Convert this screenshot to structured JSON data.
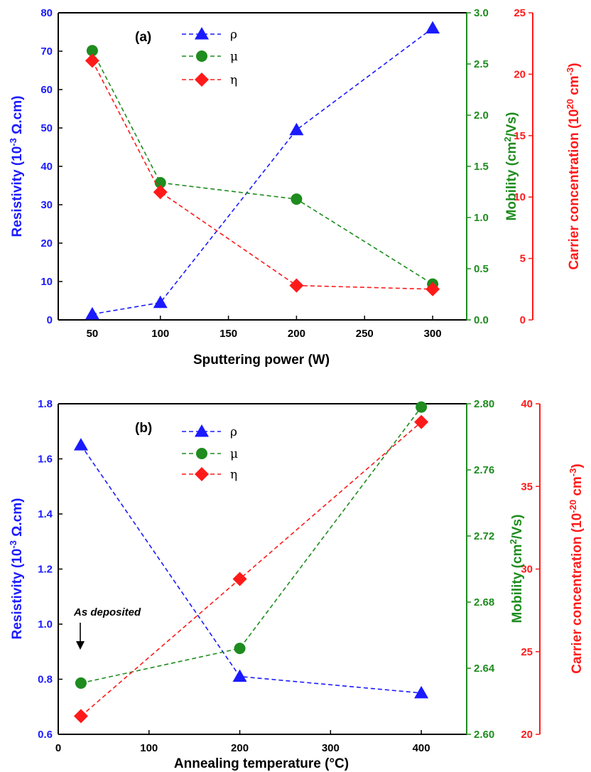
{
  "colors": {
    "rho": "#1a1aff",
    "mu": "#1e8c1e",
    "eta": "#ff1a1a",
    "frame": "#000000"
  },
  "chart_data": [
    {
      "type": "line",
      "panel_label": "(a)",
      "xlabel": "Sputtering power (W)",
      "xlim": [
        25,
        325
      ],
      "xticks": [
        50,
        100,
        150,
        200,
        250,
        300
      ],
      "y_axes": [
        {
          "label_prefix": "Resistivity (10",
          "label_sup": "-3",
          "label_suffix": " Ω.cm)",
          "ylim": [
            0,
            80
          ],
          "ticks": [
            0,
            10,
            20,
            30,
            40,
            50,
            60,
            70,
            80
          ],
          "ticklabels": [
            "0",
            "10",
            "20",
            "30",
            "40",
            "50",
            "60",
            "70",
            "80"
          ],
          "color": "#1a1aff"
        },
        {
          "label_prefix": "Mobility (cm",
          "label_sup": "2",
          "label_suffix": "/Vs)",
          "ylim": [
            0,
            3.0
          ],
          "ticks": [
            0,
            0.5,
            1.0,
            1.5,
            2.0,
            2.5,
            3.0
          ],
          "ticklabels": [
            "0.0",
            "0.5",
            "1.0",
            "1.5",
            "2.0",
            "2.5",
            "3.0"
          ],
          "color": "#1e8c1e"
        },
        {
          "label_prefix": "Carrier concentration (10",
          "label_sup": "20",
          "label_suffix": " cm",
          "label_sup2": "-3",
          "label_end": ")",
          "ylim": [
            0,
            25
          ],
          "ticks": [
            0,
            5,
            10,
            15,
            20,
            25
          ],
          "ticklabels": [
            "0",
            "5",
            "10",
            "15",
            "20",
            "25"
          ],
          "color": "#ff1a1a"
        }
      ],
      "series": [
        {
          "name": "ρ",
          "axis": 0,
          "marker": "triangle",
          "x": [
            50,
            100,
            200,
            300
          ],
          "y": [
            1.5,
            4.5,
            49.5,
            76
          ]
        },
        {
          "name": "μ",
          "axis": 1,
          "marker": "circle",
          "x": [
            50,
            100,
            200,
            300
          ],
          "y": [
            2.63,
            1.34,
            1.18,
            0.35
          ]
        },
        {
          "name": "η",
          "axis": 2,
          "marker": "diamond",
          "x": [
            50,
            100,
            200,
            300
          ],
          "y": [
            21.1,
            10.4,
            2.8,
            2.5
          ]
        }
      ],
      "legend_position": "top-center",
      "annotation": ""
    },
    {
      "type": "line",
      "panel_label": "(b)",
      "xlabel": "Annealing temperature (°C)",
      "xlim": [
        0,
        450
      ],
      "xticks": [
        0,
        100,
        200,
        300,
        400
      ],
      "y_axes": [
        {
          "label_prefix": "Resistivity (10",
          "label_sup": "-3",
          "label_suffix": " Ω.cm)",
          "ylim": [
            0.6,
            1.8
          ],
          "ticks": [
            0.6,
            0.8,
            1.0,
            1.2,
            1.4,
            1.6,
            1.8
          ],
          "ticklabels": [
            "0.6",
            "0.8",
            "1.0",
            "1.2",
            "1.4",
            "1.6",
            "1.8"
          ],
          "color": "#1a1aff"
        },
        {
          "label_prefix": "Mobility (cm",
          "label_sup": "2",
          "label_suffix": "/Vs)",
          "ylim": [
            2.6,
            2.8
          ],
          "ticks": [
            2.6,
            2.64,
            2.68,
            2.72,
            2.76,
            2.8
          ],
          "ticklabels": [
            "2.60",
            "2.64",
            "2.68",
            "2.72",
            "2.76",
            "2.80"
          ],
          "color": "#1e8c1e"
        },
        {
          "label_prefix": "Carrier concentration (10",
          "label_sup": "-20",
          "label_suffix": " cm",
          "label_sup2": "-3",
          "label_end": ")",
          "ylim": [
            20,
            40
          ],
          "ticks": [
            20,
            25,
            30,
            35,
            40
          ],
          "ticklabels": [
            "20",
            "25",
            "30",
            "35",
            "40"
          ],
          "color": "#ff1a1a"
        }
      ],
      "series": [
        {
          "name": "ρ",
          "axis": 0,
          "marker": "triangle",
          "x": [
            25,
            200,
            400
          ],
          "y": [
            1.65,
            0.81,
            0.75
          ]
        },
        {
          "name": "μ",
          "axis": 1,
          "marker": "circle",
          "x": [
            25,
            200,
            400
          ],
          "y": [
            2.631,
            2.652,
            2.798
          ]
        },
        {
          "name": "η",
          "axis": 2,
          "marker": "diamond",
          "x": [
            25,
            200,
            400
          ],
          "y": [
            21.1,
            29.4,
            38.9
          ]
        }
      ],
      "legend_position": "top-center",
      "annotation": "As deposited"
    }
  ]
}
